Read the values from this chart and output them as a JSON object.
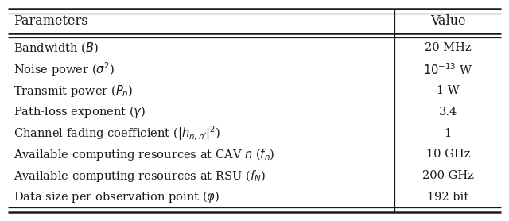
{
  "title_left": "Parameters",
  "title_right": "Value",
  "rows": [
    [
      "Bandwidth ($B$)",
      "20 MHz"
    ],
    [
      "Noise power ($\\sigma^2$)",
      "$10^{-13}$ W"
    ],
    [
      "Transmit power ($P_n$)",
      "1 W"
    ],
    [
      "Path-loss exponent ($\\gamma$)",
      "3.4"
    ],
    [
      "Channel fading coefficient ($|h_{n,n^{\\prime}}|^2$)",
      "1"
    ],
    [
      "Available computing resources at CAV $n$ ($f_n$)",
      "10 GHz"
    ],
    [
      "Available computing resources at RSU ($f_N$)",
      "200 GHz"
    ],
    [
      "Data size per observation point ($\\varphi$)",
      "192 bit"
    ]
  ],
  "bg_header": "#ffffff",
  "bg_body": "#ffffff",
  "border_color": "#1a1a1a",
  "text_color": "#1a1a1a",
  "font_size": 10.5,
  "header_font_size": 11.5,
  "col_split": 0.775,
  "fig_width": 6.4,
  "fig_height": 2.78,
  "dpi": 100
}
